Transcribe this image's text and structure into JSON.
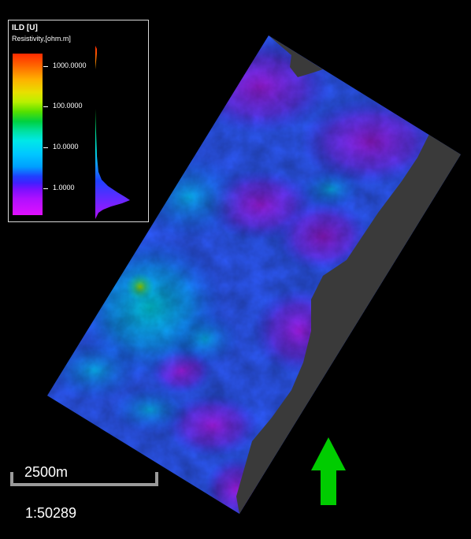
{
  "legend": {
    "title": "ILD [U]",
    "subtitle": "Resistivity,[ohm.m]",
    "ticks": [
      "1000.0000",
      "100.0000",
      "10.0000",
      "1.0000"
    ]
  },
  "scale": {
    "distance_label": "2500m",
    "ratio_label": "1:50289"
  },
  "north_arrow": {
    "icon": "north-arrow-icon",
    "color": "#00cc00"
  },
  "colors": {
    "background": "#000000",
    "nodata": "#3a3a3a",
    "frame": "#d8d8d8"
  }
}
